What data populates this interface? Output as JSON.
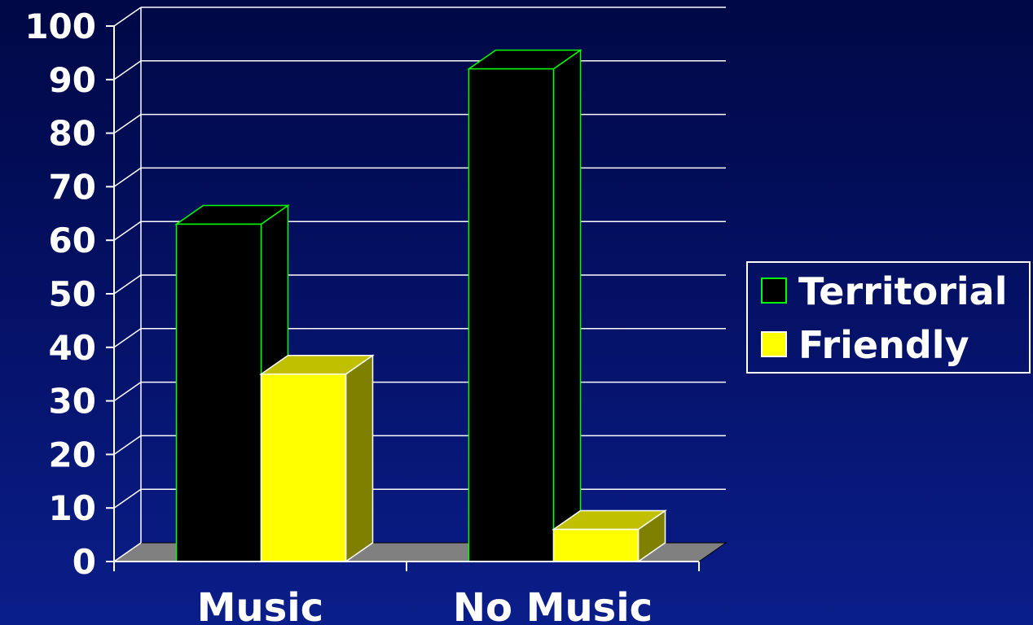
{
  "chart_data": {
    "type": "bar",
    "style": "3d",
    "categories": [
      "Music",
      "No Music"
    ],
    "series": [
      {
        "name": "Territorial",
        "values": [
          63,
          92
        ],
        "color": "#000000",
        "edge_color": "#00ff00"
      },
      {
        "name": "Friendly",
        "values": [
          35,
          6
        ],
        "color": "#ffff00",
        "edge_color": "#ffffff"
      }
    ],
    "yticks": [
      "0",
      "10",
      "20",
      "30",
      "40",
      "50",
      "60",
      "70",
      "80",
      "90",
      "100"
    ],
    "ylim": [
      0,
      100
    ],
    "grid": true,
    "legend_position": "right"
  },
  "colors": {
    "background_top": "#000845",
    "background_bottom": "#0a1e8a",
    "floor": "#808080",
    "grid": "#ffffff",
    "text": "#ffffff"
  }
}
